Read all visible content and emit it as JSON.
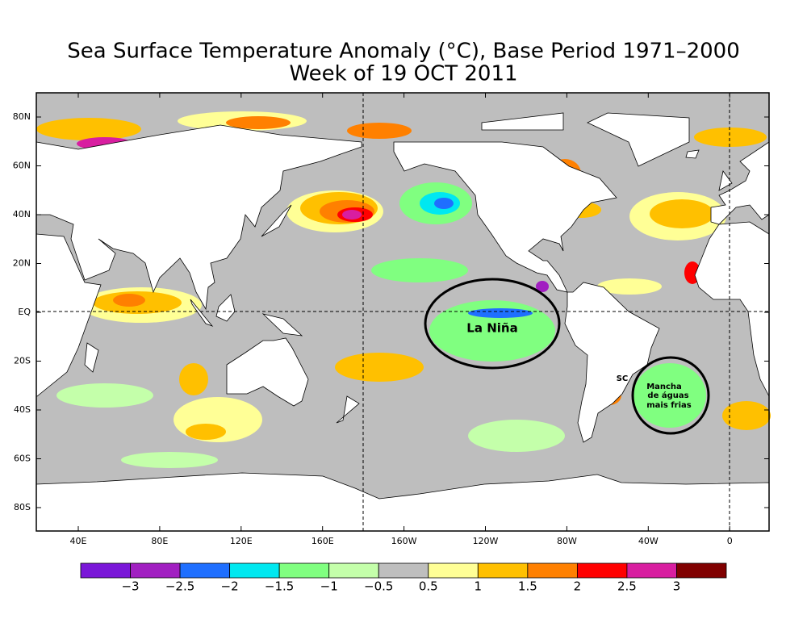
{
  "title": "Sea Surface Temperature Anomaly (°C), Base Period 1971–2000",
  "subtitle": "Week of 19 OCT 2011",
  "lat_labels": [
    "80N",
    "60N",
    "40N",
    "20N",
    "EQ",
    "20S",
    "40S",
    "60S",
    "80S"
  ],
  "lon_labels": [
    "40E",
    "80E",
    "120E",
    "160E",
    "160W",
    "120W",
    "80W",
    "40W",
    "0"
  ],
  "colorbar": {
    "colors": [
      "#7a17d8",
      "#a11fc1",
      "#1f6fff",
      "#00e8f0",
      "#80ff80",
      "#c4ffaa",
      "#bebebe",
      "#ffff96",
      "#ffc000",
      "#ff8000",
      "#ff0000",
      "#d81ea0",
      "#800000"
    ],
    "labels": [
      "−3",
      "−2.5",
      "−2",
      "−1.5",
      "−1",
      "−0.5",
      "0.5",
      "1",
      "1.5",
      "2",
      "2.5",
      "3"
    ]
  },
  "annotations": {
    "la_nina": "La Niña",
    "sc": "SC",
    "cold_patch": [
      "Mancha",
      "de águas",
      "mais frias"
    ]
  }
}
